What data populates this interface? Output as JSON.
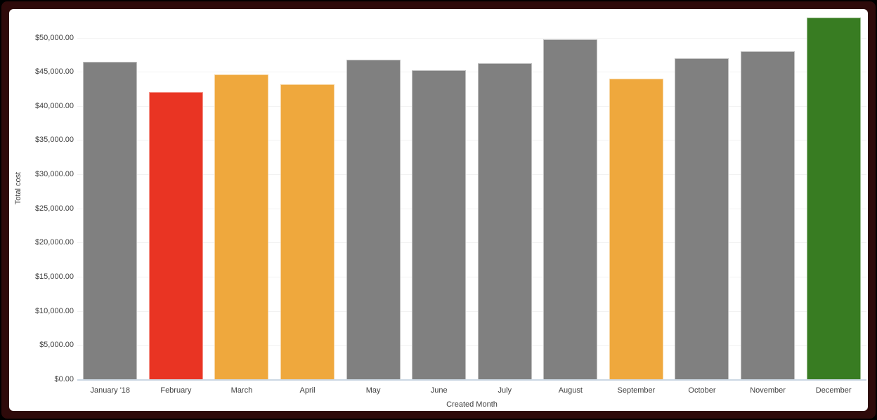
{
  "frame": {
    "outer_background": "#000000",
    "border_color": "#2e0a0a",
    "card_background": "#ffffff"
  },
  "chart_data": {
    "type": "bar",
    "title": "",
    "xlabel": "Created Month",
    "ylabel": "Total cost",
    "categories": [
      "January '18",
      "February",
      "March",
      "April",
      "May",
      "June",
      "July",
      "August",
      "September",
      "October",
      "November",
      "December"
    ],
    "values": [
      46550,
      42100,
      44750,
      43250,
      46900,
      45300,
      46400,
      49850,
      44050,
      47050,
      48100,
      53000
    ],
    "bar_colors": [
      "#808080",
      "#e93423",
      "#efa83d",
      "#efa83d",
      "#808080",
      "#808080",
      "#808080",
      "#808080",
      "#efa83d",
      "#808080",
      "#808080",
      "#387c22"
    ],
    "y_ticks": [
      {
        "value": 0,
        "label": "$0.00"
      },
      {
        "value": 5000,
        "label": "$5,000.00"
      },
      {
        "value": 10000,
        "label": "$10,000.00"
      },
      {
        "value": 15000,
        "label": "$15,000.00"
      },
      {
        "value": 20000,
        "label": "$20,000.00"
      },
      {
        "value": 25000,
        "label": "$25,000.00"
      },
      {
        "value": 30000,
        "label": "$30,000.00"
      },
      {
        "value": 35000,
        "label": "$35,000.00"
      },
      {
        "value": 40000,
        "label": "$40,000.00"
      },
      {
        "value": 45000,
        "label": "$45,000.00"
      },
      {
        "value": 50000,
        "label": "$50,000.00"
      }
    ],
    "ylim": [
      0,
      53400
    ],
    "grid": true,
    "legend": false,
    "colors": {
      "default_bar": "#808080",
      "alert_red": "#e93423",
      "warning_orange": "#efa83d",
      "positive_green": "#387c22",
      "axis_line": "#ccd8e4",
      "gridline": "#f2f2f2",
      "label_text": "#404040"
    }
  }
}
